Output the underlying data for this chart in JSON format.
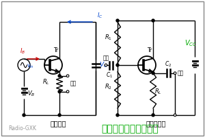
{
  "title": "コレクタ接地増幅回路",
  "title_color": "#00aa00",
  "title_fontsize": 10,
  "label_genri": "原理回路",
  "label_jissai": "実際の回路",
  "bg_color": "#ffffff",
  "border_color": "#888888",
  "red_color": "#cc0000",
  "blue_color": "#0044cc",
  "green_color": "#00aa00",
  "watermark": "Radio-GXK",
  "watermark_color": "#999999",
  "watermark_fontsize": 5.5
}
